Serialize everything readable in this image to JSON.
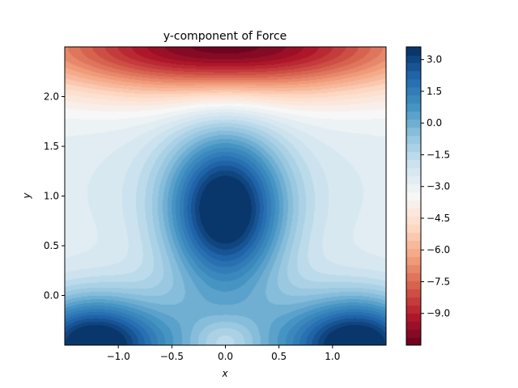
{
  "chart_data": {
    "type": "contourf",
    "title": "y-component of Force",
    "xlabel": "x",
    "ylabel": "y",
    "xlim": [
      -1.5,
      1.5
    ],
    "ylim": [
      -0.5,
      2.5
    ],
    "xticks": [
      -1.0,
      -0.5,
      0.0,
      0.5,
      1.0
    ],
    "xtick_labels": [
      "−1.0",
      "−0.5",
      "0.0",
      "0.5",
      "1.0"
    ],
    "yticks": [
      0.0,
      0.5,
      1.0,
      1.5,
      2.0
    ],
    "ytick_labels": [
      "0.0",
      "0.5",
      "1.0",
      "1.5",
      "2.0"
    ],
    "colormap": "RdBu",
    "value_range": [
      -10.5,
      3.6
    ],
    "levels": 37,
    "colorbar": {
      "ticks": [
        3.0,
        1.5,
        0.0,
        -1.5,
        -3.0,
        -4.5,
        -6.0,
        -7.5,
        -9.0
      ],
      "tick_labels": [
        "3.0",
        "1.5",
        "0.0",
        "−1.5",
        "−3.0",
        "−4.5",
        "−6.0",
        "−7.5",
        "−9.0"
      ]
    },
    "field_features": [
      {
        "x": 0.0,
        "y": 0.85,
        "value": 3.6,
        "kind": "maximum"
      },
      {
        "x": 0.0,
        "y": 2.45,
        "value": -10.4,
        "kind": "minimum"
      },
      {
        "x": -1.25,
        "y": -0.5,
        "value": 3.0,
        "kind": "local maximum"
      },
      {
        "x": 1.25,
        "y": -0.5,
        "value": 3.0,
        "kind": "local maximum"
      },
      {
        "x": 0.0,
        "y": -0.4,
        "value": -0.6,
        "kind": "saddle"
      },
      {
        "x": -1.5,
        "y": 0.75,
        "value": -2.8,
        "kind": "local minimum"
      },
      {
        "x": 1.5,
        "y": 0.75,
        "value": -2.8,
        "kind": "local minimum"
      }
    ]
  }
}
